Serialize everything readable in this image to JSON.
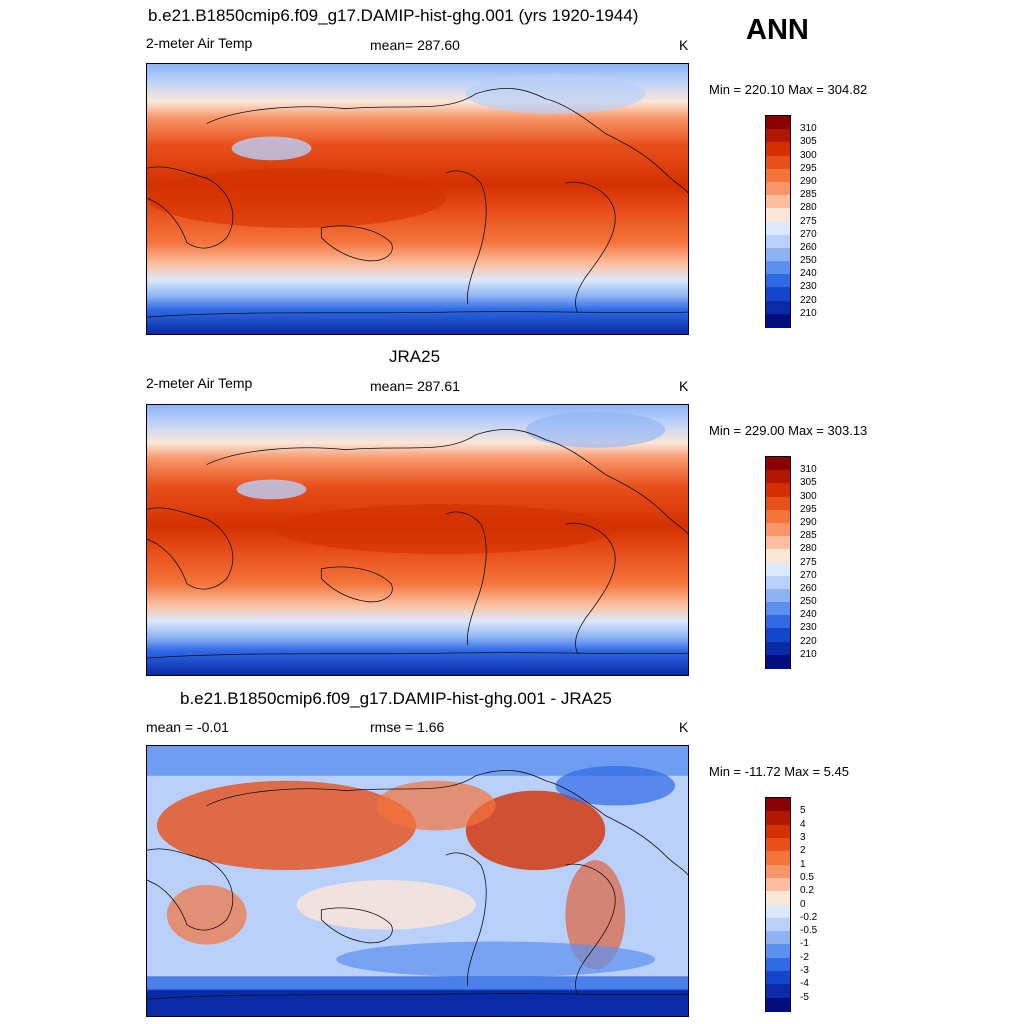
{
  "season": "ANN",
  "panels": [
    {
      "title": "b.e21.B1850cmip6.f09_g17.DAMIP-hist-ghg.001 (yrs 1920-1944)",
      "left_label": "2-meter Air Temp",
      "center_label": "mean= 287.60",
      "units": "K",
      "minmax": "Min = 220.10 Max = 304.82",
      "colorbar": {
        "labels": [
          "310",
          "305",
          "300",
          "295",
          "290",
          "285",
          "280",
          "275",
          "270",
          "260",
          "250",
          "240",
          "230",
          "220",
          "210"
        ],
        "colors": [
          "#8b0000",
          "#b01800",
          "#d43000",
          "#e8501c",
          "#f4743c",
          "#f89668",
          "#fbbfa0",
          "#fce6d8",
          "#dce9fb",
          "#b8d0fa",
          "#8db3f6",
          "#5c90f0",
          "#2f6ae6",
          "#1446cc",
          "#0b2aa8",
          "#020e80"
        ]
      }
    },
    {
      "title": "JRA25",
      "left_label": "2-meter Air Temp",
      "center_label": "mean= 287.61",
      "units": "K",
      "minmax": "Min = 229.00 Max = 303.13",
      "colorbar": {
        "labels": [
          "310",
          "305",
          "300",
          "295",
          "290",
          "285",
          "280",
          "275",
          "270",
          "260",
          "250",
          "240",
          "230",
          "220",
          "210"
        ],
        "colors": [
          "#8b0000",
          "#b01800",
          "#d43000",
          "#e8501c",
          "#f4743c",
          "#f89668",
          "#fbbfa0",
          "#fce6d8",
          "#dce9fb",
          "#b8d0fa",
          "#8db3f6",
          "#5c90f0",
          "#2f6ae6",
          "#1446cc",
          "#0b2aa8",
          "#020e80"
        ]
      }
    },
    {
      "title": "b.e21.B1850cmip6.f09_g17.DAMIP-hist-ghg.001 - JRA25",
      "left_label": "mean =  -0.01",
      "center_label": "rmse =   1.66",
      "units": "K",
      "minmax": "Min = -11.72 Max =   5.45",
      "colorbar": {
        "labels": [
          "5",
          "4",
          "3",
          "2",
          "1",
          "0.5",
          "0.2",
          "0",
          "-0.2",
          "-0.5",
          "-1",
          "-2",
          "-3",
          "-4",
          "-5"
        ],
        "colors": [
          "#8b0000",
          "#b01800",
          "#d43000",
          "#e8501c",
          "#f4743c",
          "#f89668",
          "#fbbfa0",
          "#fce6d8",
          "#dce9fb",
          "#b8d0fa",
          "#8db3f6",
          "#5c90f0",
          "#2f6ae6",
          "#1446cc",
          "#0b2aa8",
          "#020e80"
        ]
      }
    }
  ]
}
